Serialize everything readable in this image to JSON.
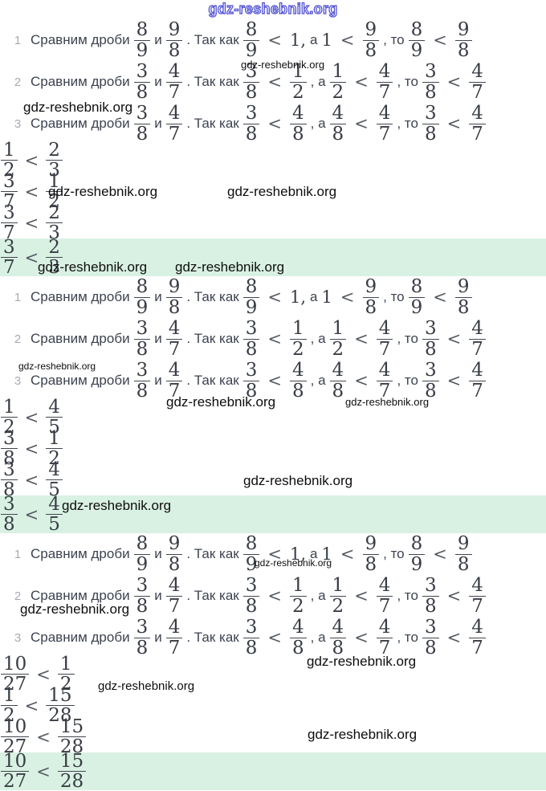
{
  "site": {
    "name": "gdz-reshebnik.org"
  },
  "colors": {
    "highlight_green": "#d9f1e3",
    "watermark_blue": "#4f4fd2"
  },
  "labels": {
    "compare": "Сравним дроби",
    "and": "и",
    "since": ". Так как",
    "lt": "<",
    "comma_a": ", а",
    "comma_to": ", то",
    "one_comma": "1,",
    "a": "а",
    "one": "1"
  },
  "lines": [
    {
      "num": "1",
      "fa": {
        "n": "8",
        "d": "9"
      },
      "fb": {
        "n": "9",
        "d": "8"
      },
      "c1l": {
        "n": "8",
        "d": "9"
      },
      "c2r": {
        "n": "9",
        "d": "8"
      },
      "c3l": {
        "n": "8",
        "d": "9"
      },
      "c3r": {
        "n": "9",
        "d": "8"
      }
    },
    {
      "num": "2",
      "fa": {
        "n": "3",
        "d": "8"
      },
      "fb": {
        "n": "4",
        "d": "7"
      },
      "c1l": {
        "n": "3",
        "d": "8"
      },
      "c1r": {
        "n": "1",
        "d": "2"
      },
      "c2l": {
        "n": "1",
        "d": "2"
      },
      "c2r": {
        "n": "4",
        "d": "7"
      },
      "c3l": {
        "n": "3",
        "d": "8"
      },
      "c3r": {
        "n": "4",
        "d": "7"
      }
    },
    {
      "num": "3",
      "fa": {
        "n": "3",
        "d": "8"
      },
      "fb": {
        "n": "4",
        "d": "7"
      },
      "c1l": {
        "n": "3",
        "d": "8"
      },
      "c1r": {
        "n": "4",
        "d": "8"
      },
      "c2l": {
        "n": "4",
        "d": "8"
      },
      "c2r": {
        "n": "4",
        "d": "7"
      },
      "c3l": {
        "n": "3",
        "d": "8"
      },
      "c3r": {
        "n": "4",
        "d": "7"
      }
    }
  ],
  "lists": [
    {
      "rows": [
        {
          "l": {
            "n": "1",
            "d": "2"
          },
          "r": {
            "n": "2",
            "d": "3"
          },
          "highlighted": false
        },
        {
          "l": {
            "n": "3",
            "d": "7"
          },
          "r": {
            "n": "1",
            "d": "2"
          },
          "highlighted": false
        },
        {
          "l": {
            "n": "3",
            "d": "7"
          },
          "r": {
            "n": "2",
            "d": "3"
          },
          "highlighted": false
        },
        {
          "l": {
            "n": "3",
            "d": "7"
          },
          "r": {
            "n": "2",
            "d": "3"
          },
          "highlighted": true
        }
      ]
    },
    {
      "rows": [
        {
          "l": {
            "n": "1",
            "d": "2"
          },
          "r": {
            "n": "4",
            "d": "5"
          },
          "highlighted": false
        },
        {
          "l": {
            "n": "3",
            "d": "8"
          },
          "r": {
            "n": "1",
            "d": "2"
          },
          "highlighted": false
        },
        {
          "l": {
            "n": "3",
            "d": "8"
          },
          "r": {
            "n": "4",
            "d": "5"
          },
          "highlighted": false
        },
        {
          "l": {
            "n": "3",
            "d": "8"
          },
          "r": {
            "n": "4",
            "d": "5"
          },
          "highlighted": true
        }
      ]
    },
    {
      "rows": [
        {
          "l": {
            "n": "10",
            "d": "27"
          },
          "r": {
            "n": "1",
            "d": "2"
          },
          "highlighted": false
        },
        {
          "l": {
            "n": "1",
            "d": "2"
          },
          "r": {
            "n": "15",
            "d": "28"
          },
          "highlighted": false
        },
        {
          "l": {
            "n": "10",
            "d": "27"
          },
          "r": {
            "n": "15",
            "d": "28"
          },
          "highlighted": false
        },
        {
          "l": {
            "n": "10",
            "d": "27"
          },
          "r": {
            "n": "15",
            "d": "28"
          },
          "highlighted": true
        }
      ]
    }
  ]
}
